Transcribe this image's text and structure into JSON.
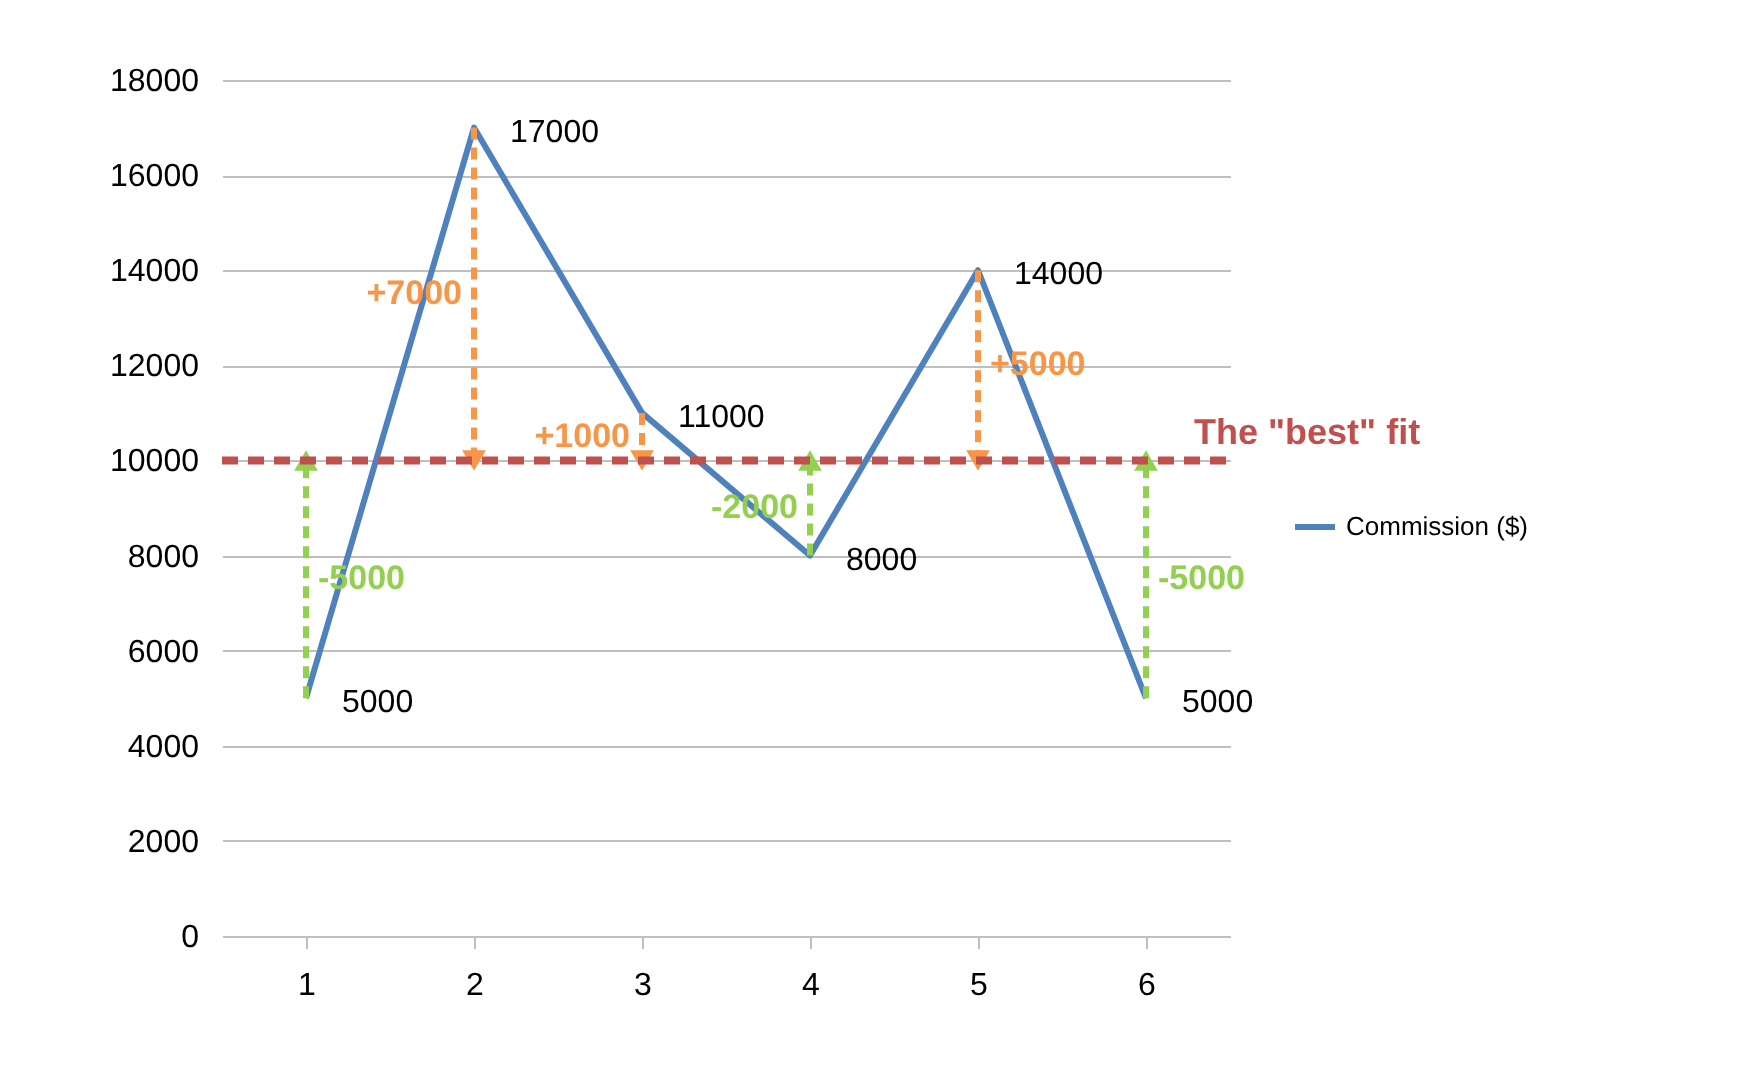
{
  "chart_data": {
    "type": "line",
    "x": [
      1,
      2,
      3,
      4,
      5,
      6
    ],
    "series": [
      {
        "name": "Commission ($)",
        "color": "#4f81bd",
        "values": [
          5000,
          17000,
          11000,
          8000,
          14000,
          5000
        ]
      }
    ],
    "xlim": [
      0.5,
      6.5
    ],
    "xticks": [
      1,
      2,
      3,
      4,
      5,
      6
    ],
    "ylim": [
      0,
      18000
    ],
    "yticks": [
      0,
      2000,
      4000,
      6000,
      8000,
      10000,
      12000,
      14000,
      16000,
      18000
    ],
    "grid": "y",
    "legend": "right",
    "marker": "none",
    "line_style": "solid",
    "data_labels": true,
    "ref_lines": [
      {
        "axis": "y",
        "value": 10000,
        "label": "The \"best\" fit",
        "color": "#c0504d",
        "line_style": "dashed"
      }
    ],
    "annotations": [
      "+7000",
      "+1000",
      "-2000",
      "-5000",
      "+5000",
      "-5000"
    ]
  }
}
